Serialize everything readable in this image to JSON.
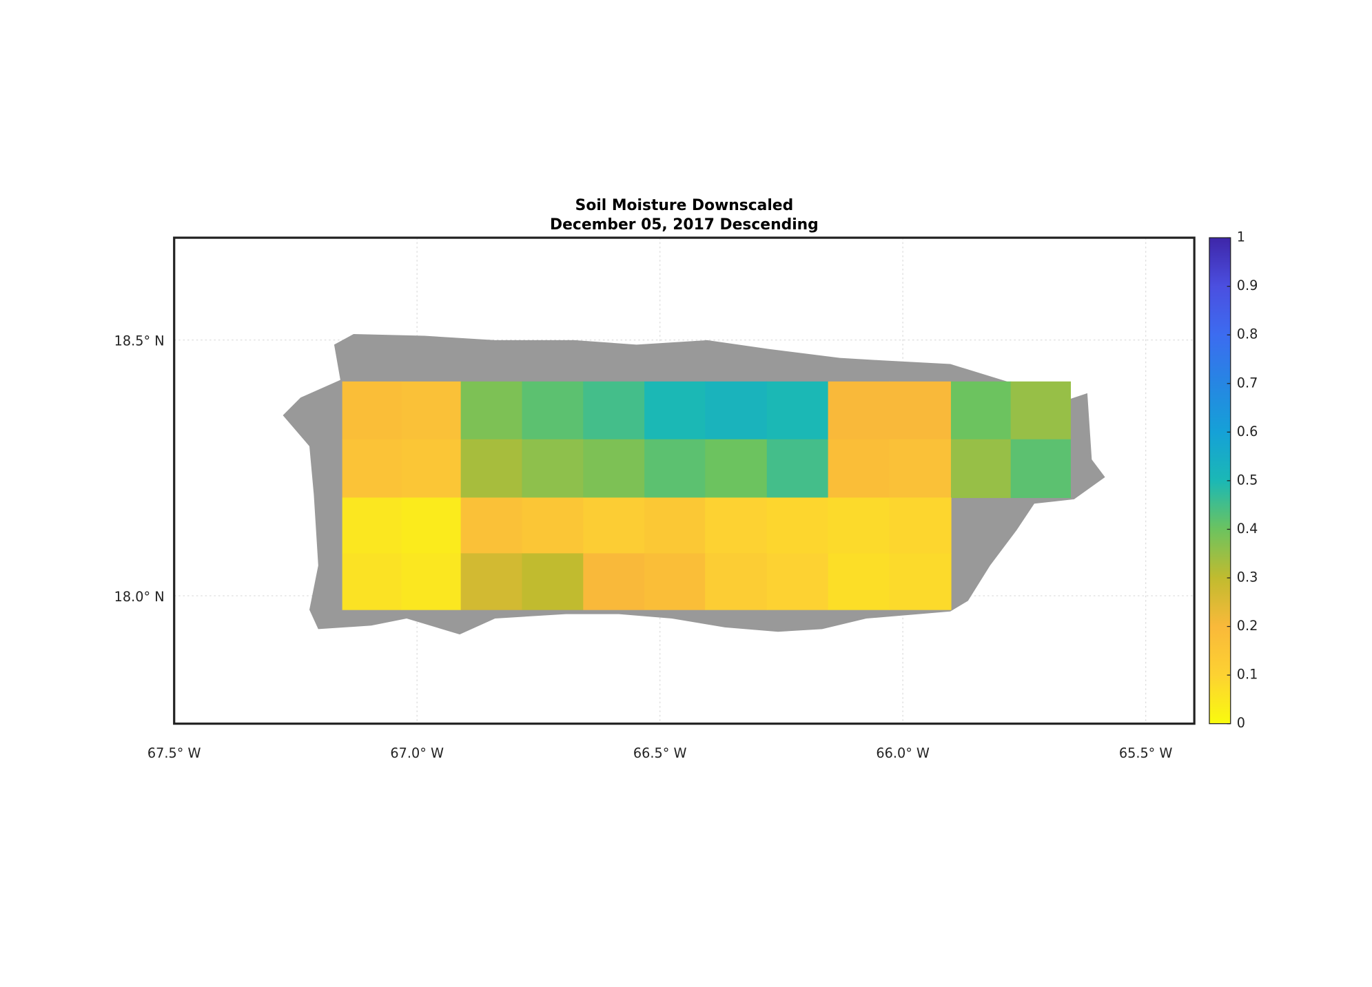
{
  "chart_data": {
    "type": "heatmap",
    "title": "Soil Moisture Downscaled",
    "subtitle": "December 05, 2017 Descending",
    "xlim": [
      -67.5,
      -65.4
    ],
    "ylim": [
      17.75,
      18.7
    ],
    "xticks": [
      {
        "value": -67.5,
        "label": "67.5° W"
      },
      {
        "value": -67.0,
        "label": "67.0° W"
      },
      {
        "value": -66.5,
        "label": "66.5° W"
      },
      {
        "value": -66.0,
        "label": "66.0° W"
      },
      {
        "value": -65.5,
        "label": "65.5° W"
      }
    ],
    "yticks": [
      {
        "value": 18.0,
        "label": "18.0° N"
      },
      {
        "value": 18.5,
        "label": "18.5° N"
      }
    ],
    "grid": true,
    "x_edges": [
      -67.154,
      -67.032,
      -66.91,
      -66.784,
      -66.658,
      -66.532,
      -66.407,
      -66.28,
      -66.154,
      -66.028,
      -65.901,
      -65.778,
      -65.655
    ],
    "y_edges": [
      18.419,
      18.306,
      18.192,
      18.083,
      17.973
    ],
    "values": [
      [
        0.18,
        0.17,
        0.38,
        0.42,
        0.45,
        0.5,
        0.52,
        0.5,
        0.2,
        0.2,
        0.4,
        0.35
      ],
      [
        0.16,
        0.15,
        0.33,
        0.36,
        0.38,
        0.42,
        0.4,
        0.45,
        0.18,
        0.17,
        0.35,
        0.42
      ],
      [
        0.05,
        0.04,
        0.17,
        0.15,
        0.12,
        0.14,
        0.1,
        0.09,
        0.08,
        0.09,
        null,
        null
      ],
      [
        0.06,
        0.05,
        0.27,
        0.3,
        0.2,
        0.18,
        0.12,
        0.1,
        0.07,
        0.08,
        null,
        null
      ]
    ],
    "clim": [
      0,
      1
    ],
    "colorbar_ticks": [
      0,
      0.1,
      0.2,
      0.3,
      0.4,
      0.5,
      0.6,
      0.7,
      0.8,
      0.9,
      1
    ],
    "colormap": [
      "#f9fb0e",
      "#fdd232",
      "#f9b93a",
      "#c1bb2f",
      "#6cc35f",
      "#1bb8b5",
      "#15a1d7",
      "#2686e3",
      "#3c6cf0",
      "#4b4fe0",
      "#3e26a8"
    ]
  }
}
